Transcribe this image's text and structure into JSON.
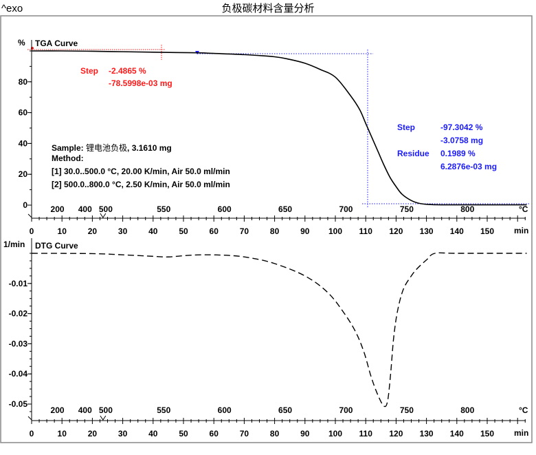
{
  "header": {
    "left": "^exo",
    "title": "负极碳材料含量分析"
  },
  "colors": {
    "curve": "#000000",
    "red_annotation": "#ff1a1a",
    "blue_annotation": "#1a1aff",
    "frame": "#888888"
  },
  "chart_data": [
    {
      "type": "line",
      "title": "TGA Curve",
      "ylabel": "%",
      "xlabel": "min",
      "x2label": "°C",
      "ylim": [
        -2,
        104
      ],
      "xlim": [
        0,
        163
      ],
      "y_ticks": [
        0,
        20,
        40,
        60,
        80
      ],
      "x_ticks": [
        0,
        10,
        20,
        30,
        40,
        50,
        60,
        70,
        80,
        90,
        100,
        110,
        120,
        130,
        140,
        150
      ],
      "temp_ticks": [
        200,
        400,
        500,
        550,
        600,
        650,
        700,
        750,
        800
      ],
      "grid": false,
      "series": [
        {
          "x": [
            0,
            10,
            20,
            30,
            40,
            50,
            55,
            60,
            70,
            80,
            85,
            90,
            95,
            100,
            105,
            108,
            110,
            112,
            114,
            116,
            118,
            120,
            122,
            125,
            128,
            132,
            140,
            163
          ],
          "y": [
            100,
            100,
            99.8,
            99.5,
            99.2,
            98.9,
            98.8,
            98.4,
            97.6,
            96.2,
            94.5,
            92,
            88,
            83,
            71,
            62,
            53,
            44,
            35,
            26,
            18,
            12,
            7,
            3,
            1,
            0.3,
            0.2,
            0.2
          ]
        }
      ],
      "annotations": [
        {
          "color": "red",
          "label": "Step",
          "lines": [
            "-2.4865 %",
            "-78.5998e-03 mg"
          ]
        },
        {
          "color": "blue",
          "label": "Step",
          "lines": [
            "-97.3042 %",
            "-3.0758 mg"
          ]
        },
        {
          "color": "blue",
          "label": "Residue",
          "lines": [
            "0.1989 %",
            "6.2876e-03 mg"
          ]
        }
      ],
      "info": {
        "sample_label": "Sample:",
        "sample_name": "锂电池负极",
        "sample_mass": ", 3.1610 mg",
        "method_label": "Method:",
        "segments": [
          "[1] 30.0..500.0 °C, 20.00 K/min, Air 50.0 ml/min",
          "[2] 500.0..800.0 °C, 2.50 K/min, Air 50.0 ml/min"
        ]
      }
    },
    {
      "type": "line",
      "title": "DTG Curve",
      "ylabel": "1/min",
      "xlabel": "min",
      "x2label": "°C",
      "ylim": [
        -0.055,
        0.001
      ],
      "xlim": [
        0,
        163
      ],
      "y_ticks": [
        -0.01,
        -0.02,
        -0.03,
        -0.04,
        -0.05
      ],
      "x_ticks": [
        0,
        10,
        20,
        30,
        40,
        50,
        60,
        70,
        80,
        90,
        100,
        110,
        120,
        130,
        140,
        150
      ],
      "temp_ticks": [
        200,
        400,
        500,
        550,
        600,
        650,
        700,
        750,
        800
      ],
      "grid": false,
      "line_style": "dashed",
      "series": [
        {
          "x": [
            0,
            20,
            30,
            40,
            45,
            50,
            56,
            65,
            72,
            80,
            90,
            97.5,
            103,
            106.8,
            109.5,
            111.8,
            114,
            116,
            117.2,
            118.2,
            119.2,
            120.5,
            122.4,
            125,
            127,
            130,
            132.8,
            140,
            163
          ],
          "y": [
            0,
            -0.0001,
            -0.0005,
            -0.001,
            -0.0012,
            -0.0008,
            -0.0005,
            -0.0007,
            -0.0015,
            -0.0034,
            -0.0075,
            -0.013,
            -0.02,
            -0.0263,
            -0.033,
            -0.041,
            -0.047,
            -0.0507,
            -0.049,
            -0.04,
            -0.028,
            -0.019,
            -0.0119,
            -0.0075,
            -0.005,
            -0.0022,
            0,
            0,
            0
          ]
        }
      ]
    }
  ]
}
